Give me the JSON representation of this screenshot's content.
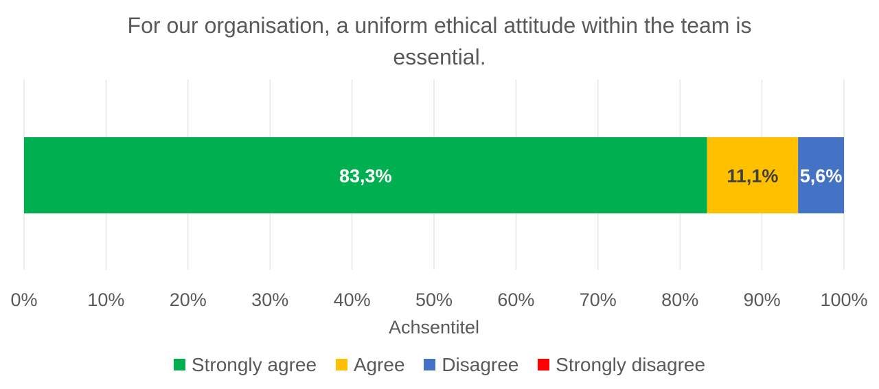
{
  "chart_data": {
    "type": "bar",
    "orientation": "horizontal",
    "stacked": true,
    "title": "For our organisation, a uniform ethical attitude within the team is essential.",
    "xlabel": "Achsentitel",
    "ylabel": "",
    "xlim": [
      0,
      100
    ],
    "x_tick_labels": [
      "0%",
      "10%",
      "20%",
      "30%",
      "40%",
      "50%",
      "60%",
      "70%",
      "80%",
      "90%",
      "100%"
    ],
    "grid": true,
    "legend_position": "bottom",
    "series": [
      {
        "name": "Strongly agree",
        "value": 83.3,
        "label": "83,3%",
        "color": "#00b050",
        "label_color": "#ffffff"
      },
      {
        "name": "Agree",
        "value": 11.1,
        "label": "11,1%",
        "color": "#ffc000",
        "label_color": "#404040"
      },
      {
        "name": "Disagree",
        "value": 5.6,
        "label": "5,6%",
        "color": "#4472c4",
        "label_color": "#ffffff"
      },
      {
        "name": "Strongly disagree",
        "value": 0,
        "label": "",
        "color": "#ff0000",
        "label_color": "#ffffff"
      }
    ]
  }
}
